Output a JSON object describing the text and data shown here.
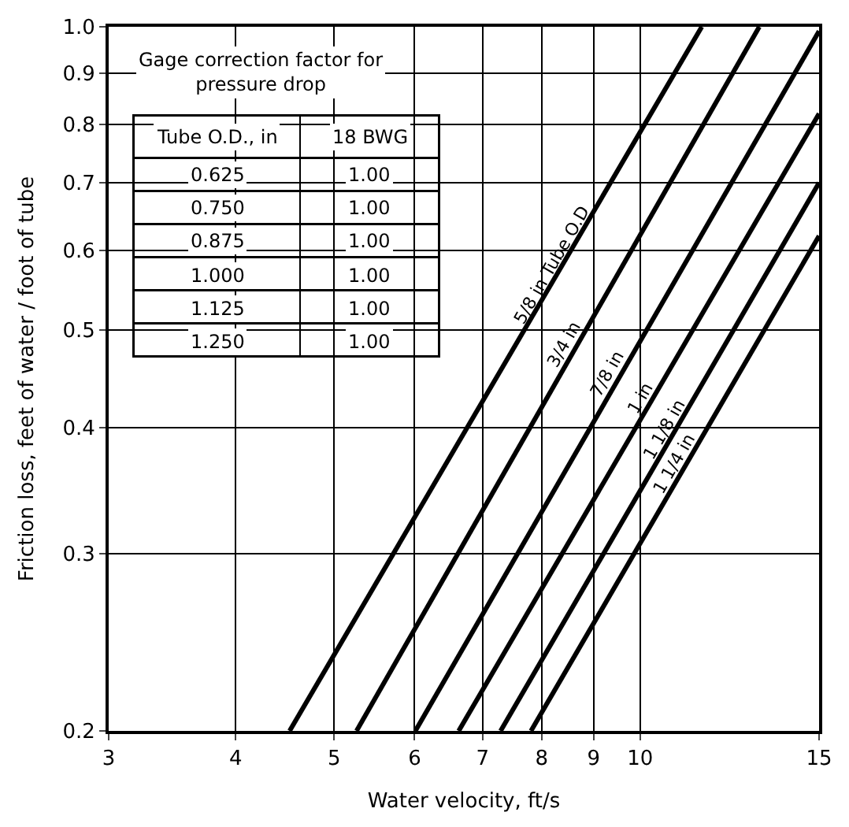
{
  "chart_data": {
    "type": "line",
    "xlabel": "Water velocity, ft/s",
    "ylabel": "Friction loss, feet of water / foot of tube",
    "log": "xy",
    "grid": true,
    "legend": false,
    "marker": "none",
    "line_style": "solid",
    "xlim": [
      3,
      15
    ],
    "xticks": [
      3,
      4,
      5,
      6,
      7,
      8,
      9,
      10,
      15
    ],
    "ylim": [
      0.2,
      1.0
    ],
    "yticks": [
      0.2,
      0.3,
      0.4,
      0.5,
      0.6,
      0.7,
      0.8,
      0.9,
      {
        "value": 1.0,
        "label": "1.0"
      }
    ],
    "series": [
      {
        "name": "5/8 in Tube O.D",
        "color": "#000000",
        "x": [
          4.52,
          11.5
        ],
        "values": [
          0.2,
          1.0
        ]
      },
      {
        "name": "3/4 in",
        "color": "#000000",
        "x": [
          5.26,
          13.1
        ],
        "values": [
          0.2,
          1.0
        ]
      },
      {
        "name": "7/8 in",
        "color": "#000000",
        "x": [
          6.01,
          15
        ],
        "values": [
          0.2,
          0.99
        ]
      },
      {
        "name": "1 in",
        "color": "#000000",
        "x": [
          6.63,
          15
        ],
        "values": [
          0.2,
          0.82
        ]
      },
      {
        "name": "1 1/8 in",
        "color": "#000000",
        "x": [
          7.29,
          15
        ],
        "values": [
          0.2,
          0.7
        ]
      },
      {
        "name": "1 1/4 in",
        "color": "#000000",
        "x": [
          7.81,
          15
        ],
        "values": [
          0.2,
          0.62
        ]
      }
    ],
    "annotations": [
      "Gage correction factor for pressure drop",
      "Tube O.D., in",
      "18 BWG",
      "0.625",
      "1.00",
      "0.750",
      "1.00",
      "0.875",
      "1.00",
      "1.000",
      "1.00",
      "1.125",
      "1.00",
      "1.250",
      "1.00"
    ]
  }
}
